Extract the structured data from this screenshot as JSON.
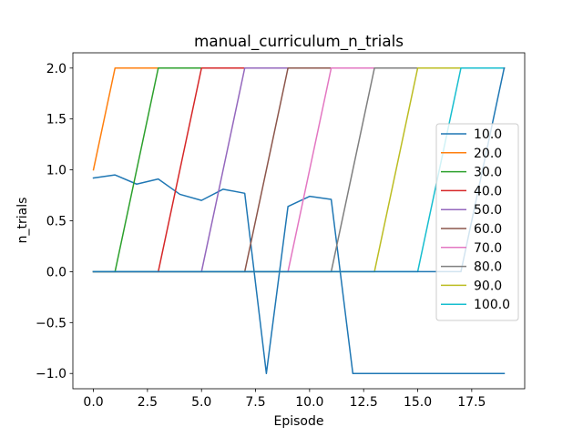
{
  "chart_data": {
    "type": "line",
    "title": "manual_curriculum_n_trials",
    "xlabel": "Episode",
    "ylabel": "n_trials",
    "xlim": [
      -0.95,
      19.95
    ],
    "ylim": [
      -1.15,
      2.15
    ],
    "xticks": [
      0.0,
      2.5,
      5.0,
      7.5,
      10.0,
      12.5,
      15.0,
      17.5
    ],
    "xtick_labels": [
      "0.0",
      "2.5",
      "5.0",
      "7.5",
      "10.0",
      "12.5",
      "15.0",
      "17.5"
    ],
    "yticks": [
      -1.0,
      -0.5,
      0.0,
      0.5,
      1.0,
      1.5,
      2.0
    ],
    "ytick_labels": [
      "−1.0",
      "−0.5",
      "0.0",
      "0.5",
      "1.0",
      "1.5",
      "2.0"
    ],
    "grid": false,
    "legend_position": "center-right",
    "series": [
      {
        "name": "10.0",
        "color": "#1f77b4",
        "x": [
          0,
          1,
          2,
          3,
          4,
          5,
          6,
          7,
          8,
          9,
          10,
          11,
          12,
          13,
          14,
          15,
          16,
          17,
          18,
          19
        ],
        "y": [
          0.92,
          0.95,
          0.86,
          0.91,
          0.76,
          0.7,
          0.81,
          0.77,
          -1,
          0.64,
          0.74,
          0.71,
          -1,
          -1,
          -1,
          -1,
          -1,
          -1,
          -1,
          -1
        ]
      },
      {
        "name": "20.0",
        "color": "#ff7f0e",
        "x": [
          0,
          1,
          19
        ],
        "y": [
          1,
          2,
          2
        ]
      },
      {
        "name": "30.0",
        "color": "#2ca02c",
        "x": [
          0,
          1,
          3,
          19
        ],
        "y": [
          0,
          0,
          2,
          2
        ]
      },
      {
        "name": "40.0",
        "color": "#d62728",
        "x": [
          0,
          3,
          5,
          19
        ],
        "y": [
          0,
          0,
          2,
          2
        ]
      },
      {
        "name": "50.0",
        "color": "#9467bd",
        "x": [
          0,
          5,
          7,
          19
        ],
        "y": [
          0,
          0,
          2,
          2
        ]
      },
      {
        "name": "60.0",
        "color": "#8c564b",
        "x": [
          0,
          7,
          9,
          19
        ],
        "y": [
          0,
          0,
          2,
          2
        ]
      },
      {
        "name": "70.0",
        "color": "#e377c2",
        "x": [
          0,
          9,
          11,
          19
        ],
        "y": [
          0,
          0,
          2,
          2
        ]
      },
      {
        "name": "80.0",
        "color": "#7f7f7f",
        "x": [
          0,
          11,
          13,
          19
        ],
        "y": [
          0,
          0,
          2,
          2
        ]
      },
      {
        "name": "90.0",
        "color": "#bcbd22",
        "x": [
          0,
          13,
          15,
          19
        ],
        "y": [
          0,
          0,
          2,
          2
        ]
      },
      {
        "name": "100.0",
        "color": "#17becf",
        "x": [
          0,
          15,
          17,
          19
        ],
        "y": [
          0,
          0,
          2,
          2
        ]
      },
      {
        "name": "",
        "color": "#1f77b4",
        "x": [
          0,
          17,
          19
        ],
        "y": [
          0,
          0,
          2
        ]
      }
    ]
  }
}
